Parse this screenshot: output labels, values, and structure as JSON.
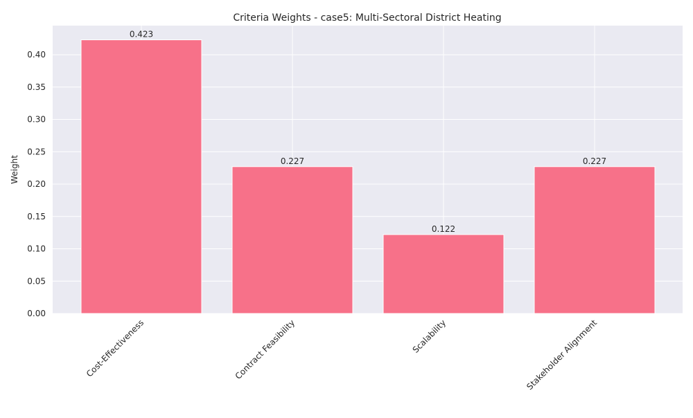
{
  "chart_data": {
    "type": "bar",
    "title": "Criteria Weights - case5: Multi-Sectoral District Heating",
    "xlabel": "",
    "ylabel": "Weight",
    "categories": [
      "Cost-Effectiveness",
      "Contract Feasibility",
      "Scalability",
      "Stakeholder Alignment"
    ],
    "values": [
      0.423,
      0.227,
      0.122,
      0.227
    ],
    "value_labels": [
      "0.423",
      "0.227",
      "0.122",
      "0.227"
    ],
    "ylim": [
      0,
      0.445
    ],
    "yticks": [
      0.0,
      0.05,
      0.1,
      0.15,
      0.2,
      0.25,
      0.3,
      0.35,
      0.4
    ],
    "ytick_labels": [
      "0.00",
      "0.05",
      "0.10",
      "0.15",
      "0.20",
      "0.25",
      "0.30",
      "0.35",
      "0.40"
    ],
    "grid": true,
    "colors": {
      "bar": "#f77189",
      "plot_background": "#eaeaf2",
      "grid": "#ffffff"
    }
  }
}
